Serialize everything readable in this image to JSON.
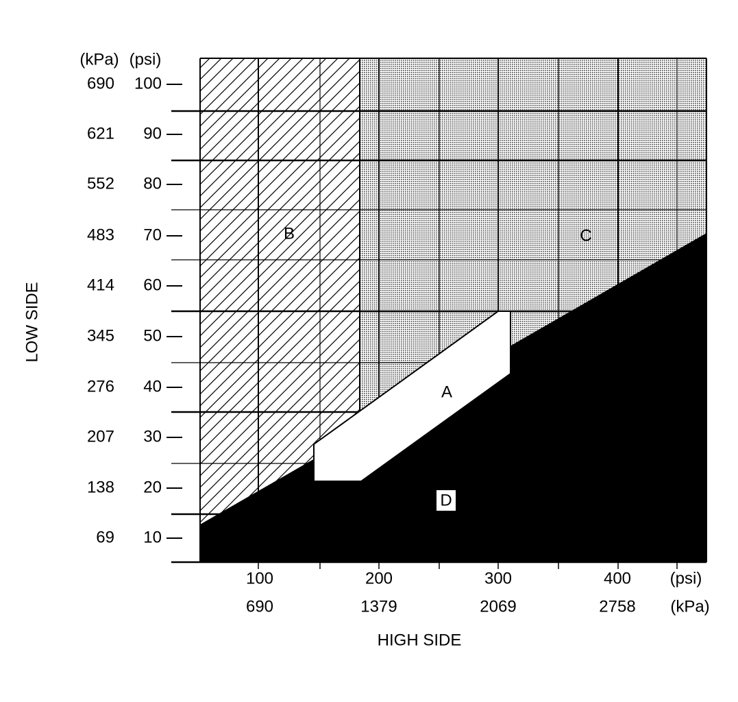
{
  "left_axis": {
    "title": "LOW SIDE",
    "unit_kpa": "(kPa)",
    "unit_psi": "(psi)",
    "kpa_labels": [
      "690",
      "621",
      "552",
      "483",
      "414",
      "345",
      "276",
      "207",
      "138",
      "69"
    ],
    "psi_labels": [
      "100",
      "90",
      "80",
      "70",
      "60",
      "50",
      "40",
      "30",
      "20",
      "10"
    ]
  },
  "bottom_axis": {
    "title": "HIGH SIDE",
    "unit_psi": "(psi)",
    "unit_kpa": "(kPa)",
    "psi_labels": [
      "100",
      "200",
      "300",
      "400"
    ],
    "kpa_labels": [
      "690",
      "1379",
      "2069",
      "2758"
    ]
  },
  "regions": {
    "a": "A",
    "b": "B",
    "c": "C",
    "d": "D"
  }
}
